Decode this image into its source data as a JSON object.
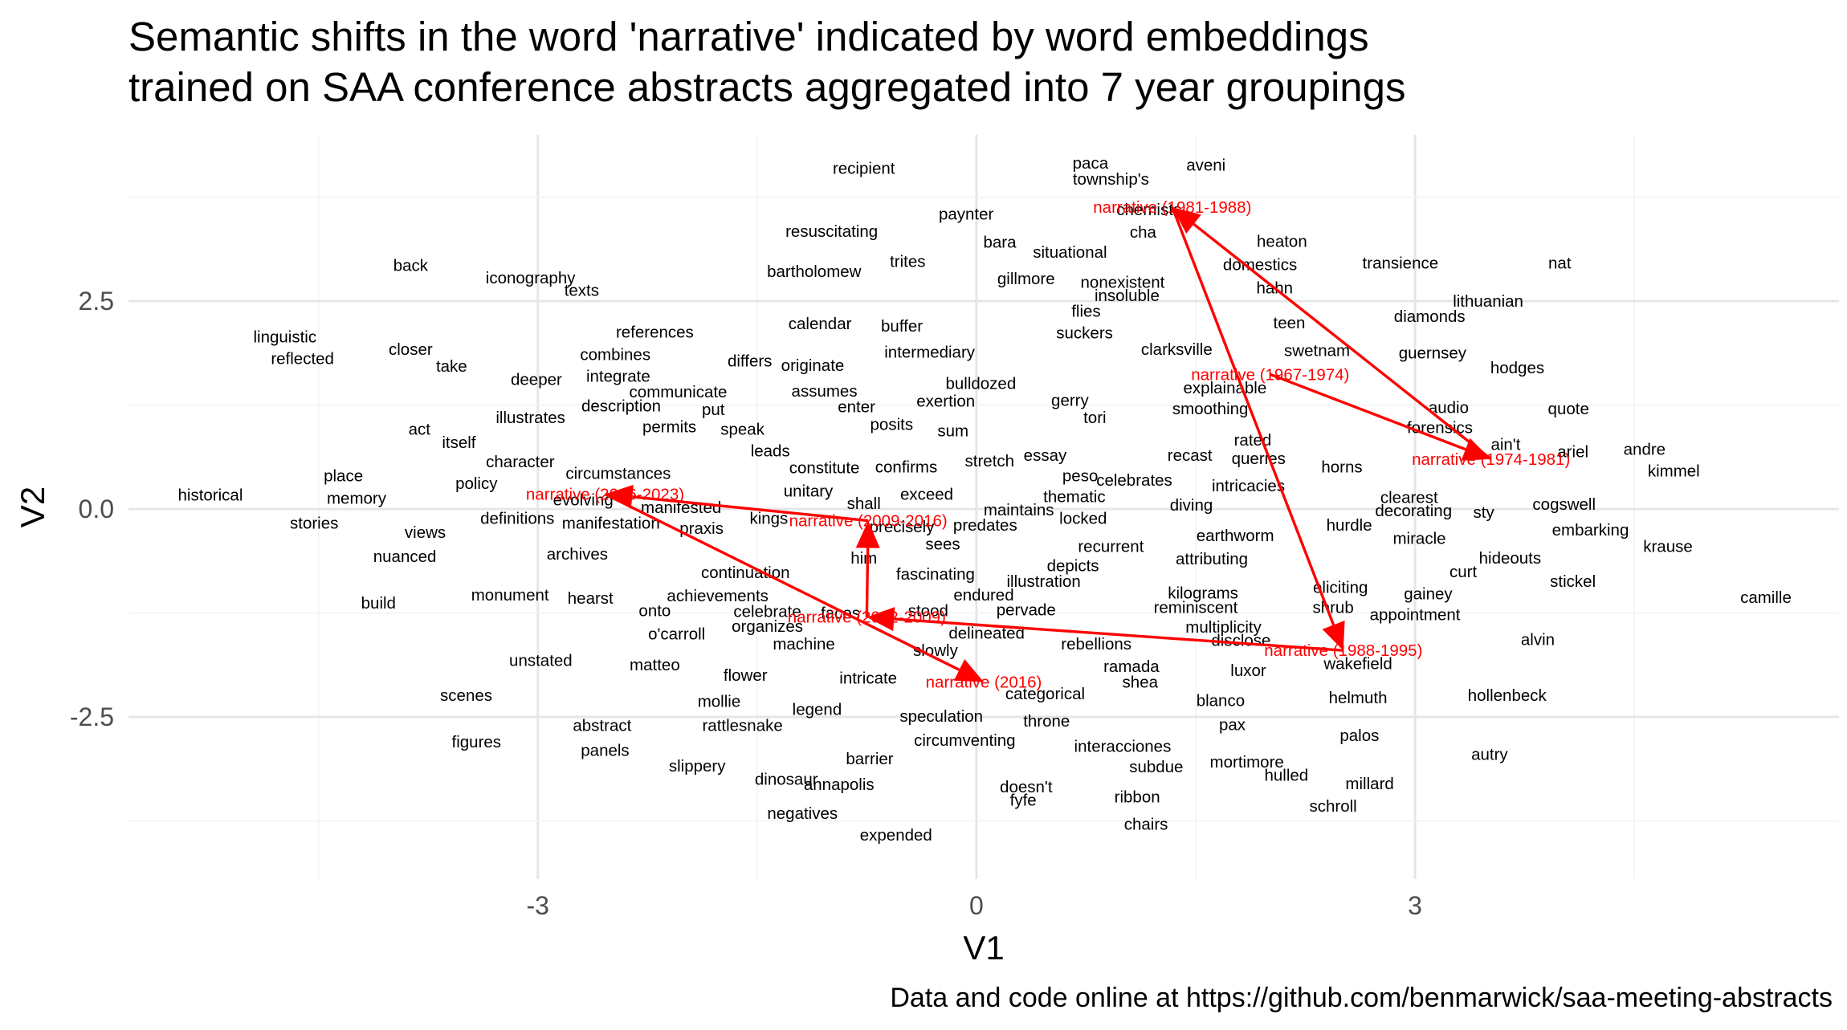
{
  "chart_data": {
    "type": "scatter",
    "title": "Semantic shifts in the word 'narrative' indicated by word embeddings\ntrained on SAA conference abstracts aggregated into 7 year groupings",
    "caption": "Data and code online at https://github.com/benmarwick/saa-meeting-abstracts",
    "xlabel": "V1",
    "ylabel": "V2",
    "xlim": [
      -5.8,
      5.9
    ],
    "ylim": [
      -4.45,
      4.5
    ],
    "x_ticks": [
      {
        "value": -3,
        "label": "-3"
      },
      {
        "value": 0,
        "label": "0"
      },
      {
        "value": 3,
        "label": "3"
      }
    ],
    "y_ticks": [
      {
        "value": 2.5,
        "label": "2.5"
      },
      {
        "value": 0,
        "label": "0.0"
      },
      {
        "value": -2.5,
        "label": "-2.5"
      }
    ],
    "grid": true,
    "words": [
      {
        "label": "recipient",
        "x": -0.77,
        "y": 4.1
      },
      {
        "label": "paca",
        "x": 0.78,
        "y": 4.16
      },
      {
        "label": "aveni",
        "x": 1.57,
        "y": 4.14
      },
      {
        "label": "township's",
        "x": 0.92,
        "y": 3.97
      },
      {
        "label": "chemists",
        "x": 1.18,
        "y": 3.6
      },
      {
        "label": "paynter",
        "x": -0.07,
        "y": 3.55
      },
      {
        "label": "resuscitating",
        "x": -0.99,
        "y": 3.34
      },
      {
        "label": "cha",
        "x": 1.14,
        "y": 3.33
      },
      {
        "label": "bara",
        "x": 0.16,
        "y": 3.21
      },
      {
        "label": "heaton",
        "x": 2.09,
        "y": 3.22
      },
      {
        "label": "situational",
        "x": 0.64,
        "y": 3.09
      },
      {
        "label": "trites",
        "x": -0.47,
        "y": 2.98
      },
      {
        "label": "domestics",
        "x": 1.94,
        "y": 2.94
      },
      {
        "label": "transience",
        "x": 2.9,
        "y": 2.96
      },
      {
        "label": "nat",
        "x": 3.99,
        "y": 2.96
      },
      {
        "label": "back",
        "x": -3.87,
        "y": 2.93
      },
      {
        "label": "bartholomew",
        "x": -1.11,
        "y": 2.86
      },
      {
        "label": "gillmore",
        "x": 0.34,
        "y": 2.77
      },
      {
        "label": "nonexistent",
        "x": 1.0,
        "y": 2.73
      },
      {
        "label": "iconography",
        "x": -3.05,
        "y": 2.78
      },
      {
        "label": "texts",
        "x": -2.7,
        "y": 2.63
      },
      {
        "label": "hahn",
        "x": 2.04,
        "y": 2.66
      },
      {
        "label": "insoluble",
        "x": 1.03,
        "y": 2.57
      },
      {
        "label": "lithuanian",
        "x": 3.5,
        "y": 2.5
      },
      {
        "label": "flies",
        "x": 0.75,
        "y": 2.38
      },
      {
        "label": "diamonds",
        "x": 3.1,
        "y": 2.32
      },
      {
        "label": "calendar",
        "x": -1.07,
        "y": 2.23
      },
      {
        "label": "buffer",
        "x": -0.51,
        "y": 2.2
      },
      {
        "label": "teen",
        "x": 2.14,
        "y": 2.24
      },
      {
        "label": "suckers",
        "x": 0.74,
        "y": 2.12
      },
      {
        "label": "references",
        "x": -2.2,
        "y": 2.13
      },
      {
        "label": "linguistic",
        "x": -4.73,
        "y": 2.07
      },
      {
        "label": "clarksville",
        "x": 1.37,
        "y": 1.92
      },
      {
        "label": "swetnam",
        "x": 2.33,
        "y": 1.91
      },
      {
        "label": "guernsey",
        "x": 3.12,
        "y": 1.88
      },
      {
        "label": "closer",
        "x": -3.87,
        "y": 1.92
      },
      {
        "label": "combines",
        "x": -2.47,
        "y": 1.86
      },
      {
        "label": "intermediary",
        "x": -0.32,
        "y": 1.89
      },
      {
        "label": "reflected",
        "x": -4.61,
        "y": 1.81
      },
      {
        "label": "differs",
        "x": -1.55,
        "y": 1.78
      },
      {
        "label": "take",
        "x": -3.59,
        "y": 1.72
      },
      {
        "label": "originate",
        "x": -1.12,
        "y": 1.73
      },
      {
        "label": "hodges",
        "x": 3.7,
        "y": 1.7
      },
      {
        "label": "deeper",
        "x": -3.01,
        "y": 1.56
      },
      {
        "label": "integrate",
        "x": -2.45,
        "y": 1.6
      },
      {
        "label": "bulldozed",
        "x": 0.03,
        "y": 1.51
      },
      {
        "label": "explainable",
        "x": 1.7,
        "y": 1.46
      },
      {
        "label": "communicate",
        "x": -2.04,
        "y": 1.41
      },
      {
        "label": "assumes",
        "x": -1.04,
        "y": 1.42
      },
      {
        "label": "gerry",
        "x": 0.64,
        "y": 1.31
      },
      {
        "label": "exertion",
        "x": -0.21,
        "y": 1.3
      },
      {
        "label": "description",
        "x": -2.43,
        "y": 1.24
      },
      {
        "label": "put",
        "x": -1.8,
        "y": 1.2
      },
      {
        "label": "enter",
        "x": -0.82,
        "y": 1.23
      },
      {
        "label": "smoothing",
        "x": 1.6,
        "y": 1.21
      },
      {
        "label": "audio",
        "x": 3.23,
        "y": 1.22
      },
      {
        "label": "quote",
        "x": 4.05,
        "y": 1.21
      },
      {
        "label": "illustrates",
        "x": -3.05,
        "y": 1.1
      },
      {
        "label": "tori",
        "x": 0.81,
        "y": 1.1
      },
      {
        "label": "permits",
        "x": -2.1,
        "y": 0.99
      },
      {
        "label": "posits",
        "x": -0.58,
        "y": 1.02
      },
      {
        "label": "speak",
        "x": -1.6,
        "y": 0.96
      },
      {
        "label": "sum",
        "x": -0.16,
        "y": 0.94
      },
      {
        "label": "forensics",
        "x": 3.17,
        "y": 0.98
      },
      {
        "label": "act",
        "x": -3.81,
        "y": 0.96
      },
      {
        "label": "rated",
        "x": 1.89,
        "y": 0.83
      },
      {
        "label": "itself",
        "x": -3.54,
        "y": 0.8
      },
      {
        "label": "ain't",
        "x": 3.62,
        "y": 0.78
      },
      {
        "label": "ariel",
        "x": 4.08,
        "y": 0.69
      },
      {
        "label": "andre",
        "x": 4.57,
        "y": 0.72
      },
      {
        "label": "leads",
        "x": -1.41,
        "y": 0.7
      },
      {
        "label": "recast",
        "x": 1.46,
        "y": 0.65
      },
      {
        "label": "essay",
        "x": 0.47,
        "y": 0.65
      },
      {
        "label": "queries",
        "x": 1.93,
        "y": 0.61
      },
      {
        "label": "character",
        "x": -3.12,
        "y": 0.57
      },
      {
        "label": "stretch",
        "x": 0.09,
        "y": 0.58
      },
      {
        "label": "constitute",
        "x": -1.04,
        "y": 0.5
      },
      {
        "label": "confirms",
        "x": -0.48,
        "y": 0.51
      },
      {
        "label": "horns",
        "x": 2.5,
        "y": 0.51
      },
      {
        "label": "kimmel",
        "x": 4.77,
        "y": 0.46
      },
      {
        "label": "circumstances",
        "x": -2.45,
        "y": 0.43
      },
      {
        "label": "peso",
        "x": 0.71,
        "y": 0.4
      },
      {
        "label": "place",
        "x": -4.33,
        "y": 0.4
      },
      {
        "label": "celebrates",
        "x": 1.08,
        "y": 0.35
      },
      {
        "label": "policy",
        "x": -3.42,
        "y": 0.31
      },
      {
        "label": "intricacies",
        "x": 1.86,
        "y": 0.28
      },
      {
        "label": "historical",
        "x": -5.24,
        "y": 0.17
      },
      {
        "label": "memory",
        "x": -4.24,
        "y": 0.13
      },
      {
        "label": "unitary",
        "x": -1.15,
        "y": 0.22
      },
      {
        "label": "exceed",
        "x": -0.34,
        "y": 0.18
      },
      {
        "label": "thematic",
        "x": 0.67,
        "y": 0.15
      },
      {
        "label": "clearest",
        "x": 2.96,
        "y": 0.14
      },
      {
        "label": "cogswell",
        "x": 4.02,
        "y": 0.06
      },
      {
        "label": "evolving",
        "x": -2.69,
        "y": 0.11
      },
      {
        "label": "shall",
        "x": -0.77,
        "y": 0.07
      },
      {
        "label": "diving",
        "x": 1.47,
        "y": 0.05
      },
      {
        "label": "manifested",
        "x": -2.02,
        "y": 0.02
      },
      {
        "label": "maintains",
        "x": 0.29,
        "y": -0.01
      },
      {
        "label": "decorating",
        "x": 2.99,
        "y": -0.02
      },
      {
        "label": "sty",
        "x": 3.47,
        "y": -0.04
      },
      {
        "label": "definitions",
        "x": -3.14,
        "y": -0.11
      },
      {
        "label": "kings",
        "x": -1.42,
        "y": -0.11
      },
      {
        "label": "locked",
        "x": 0.73,
        "y": -0.11
      },
      {
        "label": "stories",
        "x": -4.53,
        "y": -0.17
      },
      {
        "label": "manifestation",
        "x": -2.5,
        "y": -0.17
      },
      {
        "label": "precisely",
        "x": -0.51,
        "y": -0.21
      },
      {
        "label": "predates",
        "x": 0.06,
        "y": -0.19
      },
      {
        "label": "hurdle",
        "x": 2.55,
        "y": -0.19
      },
      {
        "label": "praxis",
        "x": -1.88,
        "y": -0.23
      },
      {
        "label": "embarking",
        "x": 4.2,
        "y": -0.25
      },
      {
        "label": "views",
        "x": -3.77,
        "y": -0.28
      },
      {
        "label": "earthworm",
        "x": 1.77,
        "y": -0.32
      },
      {
        "label": "miracle",
        "x": 3.03,
        "y": -0.35
      },
      {
        "label": "sees",
        "x": -0.23,
        "y": -0.42
      },
      {
        "label": "recurrent",
        "x": 0.92,
        "y": -0.45
      },
      {
        "label": "krause",
        "x": 4.73,
        "y": -0.45
      },
      {
        "label": "archives",
        "x": -2.73,
        "y": -0.54
      },
      {
        "label": "him",
        "x": -0.77,
        "y": -0.59
      },
      {
        "label": "hideouts",
        "x": 3.65,
        "y": -0.59
      },
      {
        "label": "nuanced",
        "x": -3.91,
        "y": -0.57
      },
      {
        "label": "attributing",
        "x": 1.61,
        "y": -0.6
      },
      {
        "label": "depicts",
        "x": 0.66,
        "y": -0.68
      },
      {
        "label": "fascinating",
        "x": -0.28,
        "y": -0.78
      },
      {
        "label": "continuation",
        "x": -1.58,
        "y": -0.76
      },
      {
        "label": "curt",
        "x": 3.33,
        "y": -0.75
      },
      {
        "label": "illustration",
        "x": 0.46,
        "y": -0.87
      },
      {
        "label": "stickel",
        "x": 4.08,
        "y": -0.87
      },
      {
        "label": "eliciting",
        "x": 2.49,
        "y": -0.94
      },
      {
        "label": "kilograms",
        "x": 1.55,
        "y": -1.01
      },
      {
        "label": "gainey",
        "x": 3.09,
        "y": -1.02
      },
      {
        "label": "achievements",
        "x": -1.77,
        "y": -1.04
      },
      {
        "label": "endured",
        "x": 0.05,
        "y": -1.03
      },
      {
        "label": "monument",
        "x": -3.19,
        "y": -1.03
      },
      {
        "label": "hearst",
        "x": -2.64,
        "y": -1.07
      },
      {
        "label": "camille",
        "x": 5.4,
        "y": -1.06
      },
      {
        "label": "build",
        "x": -4.09,
        "y": -1.13
      },
      {
        "label": "reminiscent",
        "x": 1.5,
        "y": -1.18
      },
      {
        "label": "shrub",
        "x": 2.44,
        "y": -1.18
      },
      {
        "label": "celebrate",
        "x": -1.43,
        "y": -1.23
      },
      {
        "label": "onto",
        "x": -2.2,
        "y": -1.22
      },
      {
        "label": "pervade",
        "x": 0.34,
        "y": -1.21
      },
      {
        "label": "stood",
        "x": -0.33,
        "y": -1.22
      },
      {
        "label": "faces",
        "x": -0.93,
        "y": -1.25
      },
      {
        "label": "appointment",
        "x": 3.0,
        "y": -1.27
      },
      {
        "label": "organizes",
        "x": -1.43,
        "y": -1.41
      },
      {
        "label": "multiplicity",
        "x": 1.69,
        "y": -1.42
      },
      {
        "label": "delineated",
        "x": 0.07,
        "y": -1.49
      },
      {
        "label": "o'carroll",
        "x": -2.05,
        "y": -1.5
      },
      {
        "label": "disclose",
        "x": 1.81,
        "y": -1.58
      },
      {
        "label": "alvin",
        "x": 3.84,
        "y": -1.57
      },
      {
        "label": "machine",
        "x": -1.18,
        "y": -1.62
      },
      {
        "label": "rebellions",
        "x": 0.82,
        "y": -1.62
      },
      {
        "label": "slowly",
        "x": -0.28,
        "y": -1.7
      },
      {
        "label": "unstated",
        "x": -2.98,
        "y": -1.82
      },
      {
        "label": "matteo",
        "x": -2.2,
        "y": -1.87
      },
      {
        "label": "wakefield",
        "x": 2.61,
        "y": -1.86
      },
      {
        "label": "ramada",
        "x": 1.06,
        "y": -1.89
      },
      {
        "label": "luxor",
        "x": 1.86,
        "y": -1.94
      },
      {
        "label": "flower",
        "x": -1.58,
        "y": -2.0
      },
      {
        "label": "intricate",
        "x": -0.74,
        "y": -2.03
      },
      {
        "label": "shea",
        "x": 1.12,
        "y": -2.08
      },
      {
        "label": "categorical",
        "x": 0.47,
        "y": -2.22
      },
      {
        "label": "scenes",
        "x": -3.49,
        "y": -2.24
      },
      {
        "label": "helmuth",
        "x": 2.61,
        "y": -2.27
      },
      {
        "label": "hollenbeck",
        "x": 3.63,
        "y": -2.24
      },
      {
        "label": "mollie",
        "x": -1.76,
        "y": -2.31
      },
      {
        "label": "blanco",
        "x": 1.67,
        "y": -2.3
      },
      {
        "label": "legend",
        "x": -1.09,
        "y": -2.41
      },
      {
        "label": "speculation",
        "x": -0.24,
        "y": -2.49
      },
      {
        "label": "abstract",
        "x": -2.56,
        "y": -2.6
      },
      {
        "label": "rattlesnake",
        "x": -1.6,
        "y": -2.6
      },
      {
        "label": "throne",
        "x": 0.48,
        "y": -2.55
      },
      {
        "label": "pax",
        "x": 1.75,
        "y": -2.59
      },
      {
        "label": "palos",
        "x": 2.62,
        "y": -2.72
      },
      {
        "label": "figures",
        "x": -3.42,
        "y": -2.8
      },
      {
        "label": "circumventing",
        "x": -0.08,
        "y": -2.78
      },
      {
        "label": "interacciones",
        "x": 1.0,
        "y": -2.85
      },
      {
        "label": "panels",
        "x": -2.54,
        "y": -2.9
      },
      {
        "label": "autry",
        "x": 3.51,
        "y": -2.95
      },
      {
        "label": "barrier",
        "x": -0.73,
        "y": -3.0
      },
      {
        "label": "mortimore",
        "x": 1.85,
        "y": -3.04
      },
      {
        "label": "subdue",
        "x": 1.23,
        "y": -3.1
      },
      {
        "label": "slippery",
        "x": -1.91,
        "y": -3.09
      },
      {
        "label": "hulled",
        "x": 2.12,
        "y": -3.2
      },
      {
        "label": "dinosaur",
        "x": -1.3,
        "y": -3.25
      },
      {
        "label": "millard",
        "x": 2.69,
        "y": -3.3
      },
      {
        "label": "annapolis",
        "x": -0.94,
        "y": -3.31
      },
      {
        "label": "doesn't",
        "x": 0.34,
        "y": -3.34
      },
      {
        "label": "ribbon",
        "x": 1.1,
        "y": -3.46
      },
      {
        "label": "fyfe",
        "x": 0.32,
        "y": -3.5
      },
      {
        "label": "schroll",
        "x": 2.44,
        "y": -3.57
      },
      {
        "label": "negatives",
        "x": -1.19,
        "y": -3.66
      },
      {
        "label": "chairs",
        "x": 1.16,
        "y": -3.79
      },
      {
        "label": "expended",
        "x": -0.55,
        "y": -3.92
      }
    ],
    "narrative_series": [
      {
        "label": "narrative (1967-1974)",
        "x": 2.01,
        "y": 1.62
      },
      {
        "label": "narrative (1974-1981)",
        "x": 3.52,
        "y": 0.6
      },
      {
        "label": "narrative (1981-1988)",
        "x": 1.34,
        "y": 3.63
      },
      {
        "label": "narrative (1988-1995)",
        "x": 2.51,
        "y": -1.7
      },
      {
        "label": "narrative (2002-2009)",
        "x": -0.75,
        "y": -1.3
      },
      {
        "label": "narrative (2009-2016)",
        "x": -0.74,
        "y": -0.14
      },
      {
        "label": "narrative (2016-2023)",
        "x": -2.54,
        "y": 0.18
      },
      {
        "label": "narrative (2016)",
        "x": 0.05,
        "y": -2.08
      }
    ],
    "arrows": [
      {
        "from": [
          2.01,
          1.62
        ],
        "to": [
          3.52,
          0.6
        ]
      },
      {
        "from": [
          3.52,
          0.6
        ],
        "to": [
          1.34,
          3.63
        ]
      },
      {
        "from": [
          1.34,
          3.63
        ],
        "to": [
          2.51,
          -1.7
        ]
      },
      {
        "from": [
          2.51,
          -1.7
        ],
        "to": [
          -0.75,
          -1.3
        ]
      },
      {
        "from": [
          -0.75,
          -1.3
        ],
        "to": [
          -0.74,
          -0.14
        ]
      },
      {
        "from": [
          -0.74,
          -0.14
        ],
        "to": [
          -2.54,
          0.18
        ]
      },
      {
        "from": [
          -2.54,
          0.18
        ],
        "to": [
          0.05,
          -2.08
        ]
      }
    ]
  }
}
